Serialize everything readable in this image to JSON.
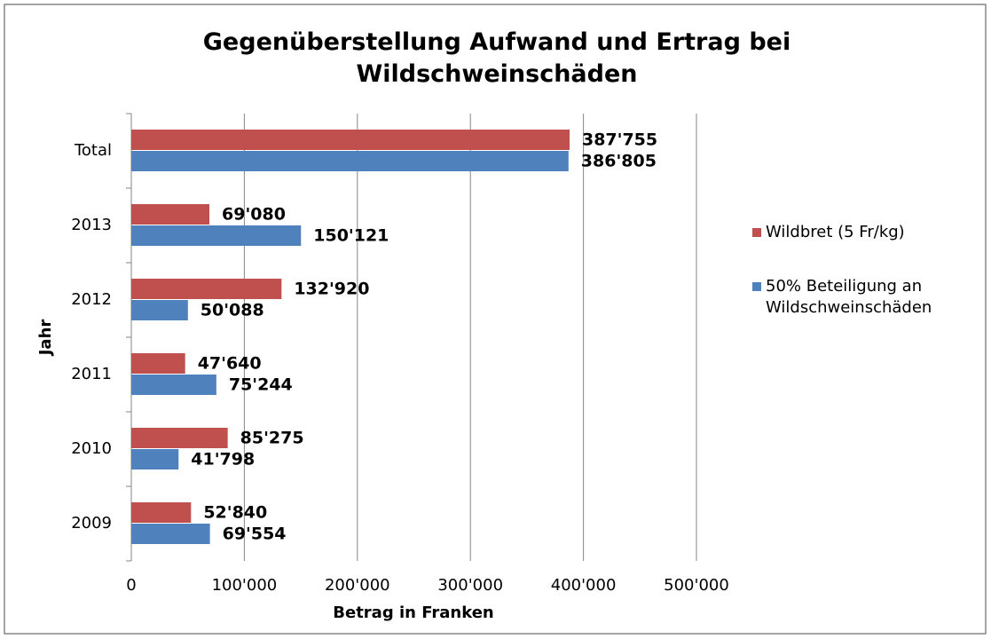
{
  "chart_data": {
    "type": "barh",
    "title": "Gegenüberstellung Aufwand und Ertrag bei Wildschweinschäden",
    "xlabel": "Betrag in Franken",
    "ylabel": "Jahr",
    "categories": [
      "Total",
      "2013",
      "2012",
      "2011",
      "2010",
      "2009"
    ],
    "series": [
      {
        "name": "Wildbret (5 Fr/kg)",
        "color": "#c0504d",
        "values": [
          387755,
          69080,
          132920,
          47640,
          85275,
          52840
        ],
        "value_labels": [
          "387'755",
          "69'080",
          "132'920",
          "47'640",
          "85'275",
          "52'840"
        ]
      },
      {
        "name": "50% Beteiligung an Wildschweinschäden",
        "color": "#4f81bd",
        "values": [
          386805,
          150121,
          50088,
          75244,
          41798,
          69554
        ],
        "value_labels": [
          "386'805",
          "150'121",
          "50'088",
          "75'244",
          "41'798",
          "69'554"
        ]
      }
    ],
    "xlim": [
      0,
      500000
    ],
    "xticks": [
      0,
      {
        "value": 100000,
        "label": "100'000"
      },
      {
        "value": 200000,
        "label": "200'000"
      },
      {
        "value": 300000,
        "label": "300'000"
      },
      {
        "value": 400000,
        "label": "400'000"
      },
      {
        "value": 500000,
        "label": "500'000"
      }
    ],
    "grid": true,
    "legend": "right"
  }
}
